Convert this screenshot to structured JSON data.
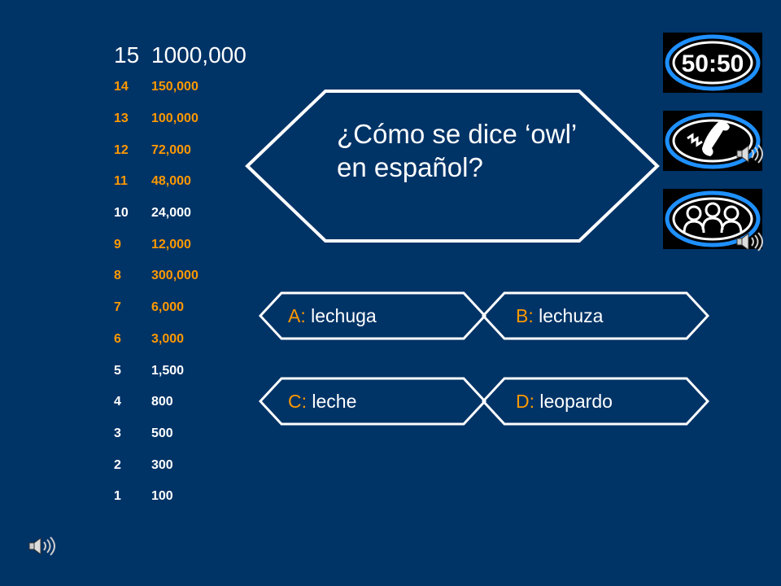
{
  "ladder": {
    "top": {
      "num": "15",
      "amount": "1000,000"
    },
    "rows": [
      {
        "num": "14",
        "amount": "150,000",
        "color": "#ff9900"
      },
      {
        "num": "13",
        "amount": "100,000",
        "color": "#ff9900"
      },
      {
        "num": "12",
        "amount": "72,000",
        "color": "#ff9900"
      },
      {
        "num": "11",
        "amount": "48,000",
        "color": "#ff9900"
      },
      {
        "num": "10",
        "amount": "24,000",
        "color": "#ffffff"
      },
      {
        "num": "9",
        "amount": "12,000",
        "color": "#ff9900"
      },
      {
        "num": "8",
        "amount": "300,000",
        "color": "#ff9900"
      },
      {
        "num": "7",
        "amount": "6,000",
        "color": "#ff9900"
      },
      {
        "num": "6",
        "amount": "3,000",
        "color": "#ff9900"
      },
      {
        "num": "5",
        "amount": "1,500",
        "color": "#ffffff"
      },
      {
        "num": "4",
        "amount": "800",
        "color": "#ffffff"
      },
      {
        "num": "3",
        "amount": "500",
        "color": "#ffffff"
      },
      {
        "num": "2",
        "amount": "300",
        "color": "#ffffff"
      },
      {
        "num": "1",
        "amount": "100",
        "color": "#ffffff"
      }
    ]
  },
  "question": {
    "text": "¿Cómo se dice ‘owl’ en español?"
  },
  "answers": {
    "a": {
      "letter": "A:",
      "text": " lechuga"
    },
    "b": {
      "letter": "B:",
      "text": " lechuza"
    },
    "c": {
      "letter": "C:",
      "text": " leche"
    },
    "d": {
      "letter": "D:",
      "text": " leopardo"
    }
  },
  "lifelines": {
    "fifty_fifty": {
      "label": "50:50",
      "icon": "fifty-fifty-icon"
    },
    "phone": {
      "icon": "phone-a-friend-icon"
    },
    "audience": {
      "icon": "ask-the-audience-icon"
    }
  },
  "colors": {
    "background": "#003366",
    "accent": "#ff9900",
    "ring": "#1e90ff"
  }
}
